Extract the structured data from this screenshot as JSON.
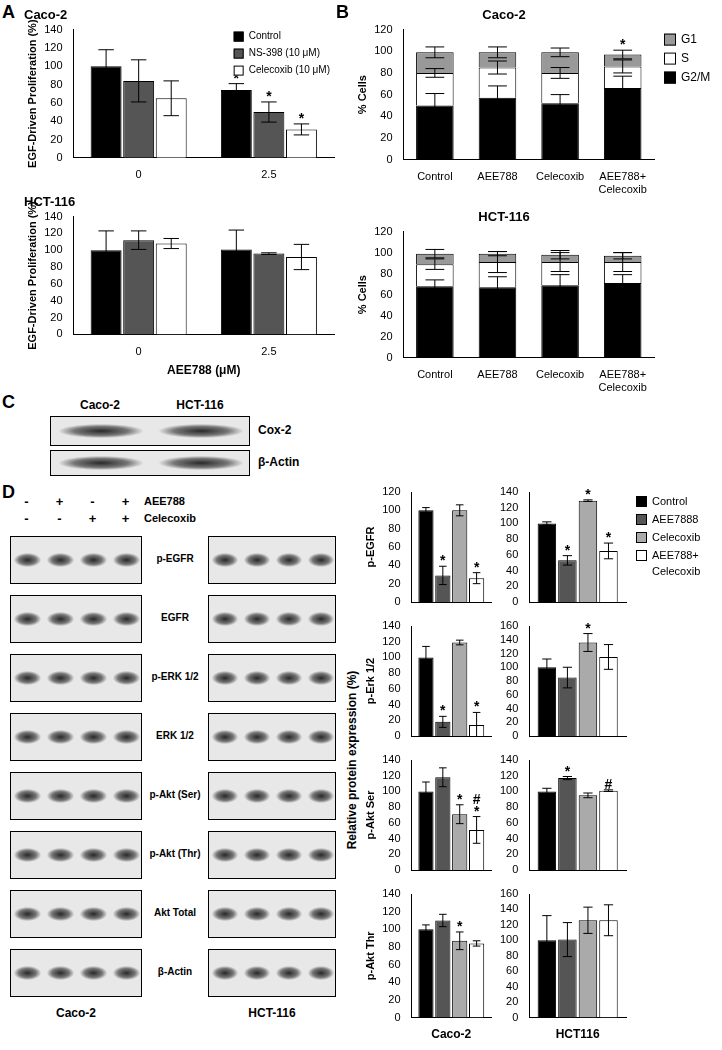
{
  "chart_data": [
    {
      "type": "bar",
      "title": "Caco-2",
      "ylabel": "EGF-Driven Proliferation (%)",
      "categories": [
        "0",
        "2.5"
      ],
      "series": [
        {
          "name": "Control",
          "color": "#000000",
          "values": [
            100,
            74
          ],
          "errors": [
            18,
            7
          ]
        },
        {
          "name": "NS-398 (10 μM)",
          "color": "#555555",
          "values": [
            84,
            50
          ],
          "errors": [
            23,
            11
          ]
        },
        {
          "name": "Celecoxib (10 μM)",
          "color": "#ffffff",
          "values": [
            65,
            31
          ],
          "errors": [
            19,
            6
          ]
        }
      ],
      "annotations": [
        {
          "series_index": 0,
          "index": 1,
          "text": "*"
        },
        {
          "series_index": 1,
          "index": 1,
          "text": "*"
        },
        {
          "series_index": 2,
          "index": 1,
          "text": "*"
        }
      ],
      "ylim": [
        0,
        140
      ],
      "yticks": [
        0,
        20,
        40,
        60,
        80,
        100,
        120,
        140
      ],
      "grid": false,
      "legend": "upper right"
    },
    {
      "type": "bar",
      "title": "HCT-116",
      "ylabel": "EGF-Driven Proliferation (%)",
      "xlabel": "AEE788 (μM)",
      "categories": [
        "0",
        "2.5"
      ],
      "series": [
        {
          "color": "#000000",
          "values": [
            100,
            101
          ],
          "errors": [
            23,
            23
          ]
        },
        {
          "color": "#555555",
          "values": [
            112,
            96
          ],
          "errors": [
            11,
            1
          ]
        },
        {
          "color": "#ffffff",
          "values": [
            108,
            92
          ],
          "errors": [
            6,
            15
          ]
        }
      ],
      "ylim": [
        0,
        140
      ],
      "yticks": [
        0,
        20,
        40,
        60,
        80,
        100,
        120,
        140
      ],
      "grid": false
    },
    {
      "type": "bar",
      "stacked": true,
      "title": "Caco-2",
      "ylabel": "% Cells",
      "categories": [
        "Control",
        "AEE788",
        "Celecoxib",
        "AEE788+ Celecoxib"
      ],
      "series": [
        {
          "name": "G2/M",
          "color": "#000000",
          "values": [
            50,
            57,
            52,
            66
          ],
          "errors": [
            11,
            11,
            8,
            11
          ]
        },
        {
          "name": "S",
          "color": "#ffffff",
          "values": [
            30,
            28,
            28,
            20
          ],
          "errors": [
            4,
            6,
            5,
            6
          ]
        },
        {
          "name": "G1",
          "color": "#999999",
          "values": [
            19,
            14,
            19,
            11
          ],
          "errors": [
            5,
            5,
            4,
            4
          ]
        }
      ],
      "annotations": [
        {
          "series_index": 2,
          "index": 3,
          "text": "*"
        }
      ],
      "ylim": [
        0,
        120
      ],
      "yticks": [
        0,
        20,
        40,
        60,
        80,
        100,
        120
      ],
      "grid": false,
      "legend": "right"
    },
    {
      "type": "bar",
      "stacked": true,
      "title": "HCT-116",
      "ylabel": "% Cells",
      "categories": [
        "Control",
        "AEE788",
        "Celecoxib",
        "AEE788+ Celecoxib"
      ],
      "series": [
        {
          "color": "#000000",
          "values": [
            68,
            67,
            69,
            71
          ],
          "errors": [
            6,
            10,
            10,
            8
          ]
        },
        {
          "color": "#ffffff",
          "values": [
            21,
            24,
            22,
            20
          ],
          "errors": [
            5,
            10,
            9,
            9
          ]
        },
        {
          "color": "#999999",
          "values": [
            10,
            8,
            7,
            6
          ],
          "errors": [
            4,
            2,
            4,
            3
          ]
        }
      ],
      "ylim": [
        0,
        120
      ],
      "yticks": [
        0,
        20,
        40,
        60,
        80,
        100,
        120
      ],
      "grid": false
    },
    {
      "type": "bar",
      "ylabel": "p-EGFR",
      "categories": [
        null
      ],
      "tick_labels": "y",
      "series": [
        {
          "color": "#000000",
          "values": [
            100
          ],
          "errors": [
            3
          ]
        },
        {
          "color": "#555555",
          "values": [
            29
          ],
          "errors": [
            10
          ]
        },
        {
          "color": "#aaaaaa",
          "values": [
            100
          ],
          "errors": [
            6
          ]
        },
        {
          "color": "#ffffff",
          "values": [
            26
          ],
          "errors": [
            6
          ]
        }
      ],
      "annotations": [
        {
          "series_index": 1,
          "index": 0,
          "text": "*"
        },
        {
          "series_index": 3,
          "index": 0,
          "text": "*"
        }
      ],
      "ylim": [
        0,
        120
      ],
      "yticks": [
        0,
        20,
        40,
        60,
        80,
        100,
        120
      ],
      "grid": false
    },
    {
      "type": "bar",
      "categories": [
        null
      ],
      "tick_labels": "y",
      "series": [
        {
          "name": "Control",
          "color": "#000000",
          "values": [
            100
          ],
          "errors": [
            2
          ]
        },
        {
          "name": "AEE7888",
          "color": "#555555",
          "values": [
            53
          ],
          "errors": [
            6
          ]
        },
        {
          "name": "Celecoxib",
          "color": "#aaaaaa",
          "values": [
            129
          ],
          "errors": [
            1
          ]
        },
        {
          "name": "AEE788+ Celecoxib",
          "color": "#ffffff",
          "values": [
            65
          ],
          "errors": [
            10
          ]
        }
      ],
      "annotations": [
        {
          "series_index": 1,
          "index": 0,
          "text": "*"
        },
        {
          "series_index": 2,
          "index": 0,
          "text": "*"
        },
        {
          "series_index": 3,
          "index": 0,
          "text": "*"
        }
      ],
      "ylim": [
        0,
        140
      ],
      "yticks": [
        0,
        20,
        40,
        60,
        80,
        100,
        120,
        140
      ],
      "grid": false,
      "legend": "right"
    },
    {
      "type": "bar",
      "ylabel": "p-Erk 1/2",
      "categories": [
        null
      ],
      "tick_labels": "y",
      "series": [
        {
          "color": "#000000",
          "values": [
            100
          ],
          "errors": [
            14
          ]
        },
        {
          "color": "#555555",
          "values": [
            18
          ],
          "errors": [
            7
          ]
        },
        {
          "color": "#aaaaaa",
          "values": [
            119
          ],
          "errors": [
            3
          ]
        },
        {
          "color": "#ffffff",
          "values": [
            14
          ],
          "errors": [
            16
          ]
        }
      ],
      "annotations": [
        {
          "series_index": 1,
          "index": 0,
          "text": "*"
        },
        {
          "series_index": 3,
          "index": 0,
          "text": "*"
        }
      ],
      "ylim": [
        0,
        140
      ],
      "yticks": [
        0,
        20,
        40,
        60,
        80,
        100,
        120,
        140
      ],
      "grid": false
    },
    {
      "type": "bar",
      "categories": [
        null
      ],
      "tick_labels": "y",
      "series": [
        {
          "color": "#000000",
          "values": [
            100
          ],
          "errors": [
            12
          ]
        },
        {
          "color": "#555555",
          "values": [
            85
          ],
          "errors": [
            15
          ]
        },
        {
          "color": "#aaaaaa",
          "values": [
            136
          ],
          "errors": [
            13
          ]
        },
        {
          "color": "#ffffff",
          "values": [
            115
          ],
          "errors": [
            18
          ]
        }
      ],
      "annotations": [
        {
          "series_index": 2,
          "index": 0,
          "text": "*"
        }
      ],
      "ylim": [
        0,
        160
      ],
      "yticks": [
        0,
        20,
        40,
        60,
        80,
        100,
        120,
        140,
        160
      ],
      "grid": false
    },
    {
      "type": "bar",
      "ylabel": "p-Akt Ser",
      "categories": [
        null
      ],
      "tick_labels": "y",
      "series": [
        {
          "color": "#000000",
          "values": [
            100
          ],
          "errors": [
            12
          ]
        },
        {
          "color": "#555555",
          "values": [
            118
          ],
          "errors": [
            12
          ]
        },
        {
          "color": "#aaaaaa",
          "values": [
            71
          ],
          "errors": [
            12
          ]
        },
        {
          "color": "#ffffff",
          "values": [
            51
          ],
          "errors": [
            17
          ]
        }
      ],
      "annotations": [
        {
          "series_index": 2,
          "index": 0,
          "text": "*"
        },
        {
          "series_index": 3,
          "index": 0,
          "text": "*"
        },
        {
          "series_index": 3,
          "index": 0,
          "text": "#"
        }
      ],
      "ylim": [
        0,
        140
      ],
      "yticks": [
        0,
        20,
        40,
        60,
        80,
        100,
        120,
        140
      ],
      "grid": false
    },
    {
      "type": "bar",
      "categories": [
        null
      ],
      "tick_labels": "y",
      "series": [
        {
          "color": "#000000",
          "values": [
            100
          ],
          "errors": [
            4
          ]
        },
        {
          "color": "#555555",
          "values": [
            117
          ],
          "errors": [
            2
          ]
        },
        {
          "color": "#aaaaaa",
          "values": [
            95
          ],
          "errors": [
            3
          ]
        },
        {
          "color": "#ffffff",
          "values": [
            101
          ],
          "errors": [
            1
          ]
        }
      ],
      "annotations": [
        {
          "series_index": 1,
          "index": 0,
          "text": "*"
        },
        {
          "series_index": 3,
          "index": 0,
          "text": "#"
        }
      ],
      "ylim": [
        0,
        140
      ],
      "yticks": [
        0,
        20,
        40,
        60,
        80,
        100,
        120,
        140
      ],
      "grid": false
    },
    {
      "type": "bar",
      "ylabel": "p-Akt Thr",
      "xlabel": "Caco-2",
      "categories": [
        null
      ],
      "tick_labels": "y",
      "series": [
        {
          "color": "#000000",
          "values": [
            100
          ],
          "errors": [
            5
          ]
        },
        {
          "color": "#555555",
          "values": [
            110
          ],
          "errors": [
            7
          ]
        },
        {
          "color": "#aaaaaa",
          "values": [
            87
          ],
          "errors": [
            10
          ]
        },
        {
          "color": "#ffffff",
          "values": [
            84
          ],
          "errors": [
            3
          ]
        }
      ],
      "annotations": [
        {
          "series_index": 2,
          "index": 0,
          "text": "*"
        }
      ],
      "ylim": [
        0,
        140
      ],
      "yticks": [
        0,
        20,
        40,
        60,
        80,
        100,
        120,
        140
      ],
      "grid": false
    },
    {
      "type": "bar",
      "xlabel": "HCT116",
      "categories": [
        null
      ],
      "tick_labels": "y",
      "series": [
        {
          "color": "#000000",
          "values": [
            100
          ],
          "errors": [
            32
          ]
        },
        {
          "color": "#555555",
          "values": [
            101
          ],
          "errors": [
            22
          ]
        },
        {
          "color": "#aaaaaa",
          "values": [
            126
          ],
          "errors": [
            17
          ]
        },
        {
          "color": "#ffffff",
          "values": [
            126
          ],
          "errors": [
            20
          ]
        }
      ],
      "ylim": [
        0,
        160
      ],
      "yticks": [
        0,
        20,
        40,
        60,
        80,
        100,
        120,
        140,
        160
      ],
      "grid": false
    }
  ],
  "panels": [
    "A",
    "B",
    "C",
    "D"
  ],
  "blot_c": {
    "lanes": [
      "Caco-2",
      "HCT-116"
    ],
    "rows": [
      "Cox-2",
      "β-Actin"
    ]
  },
  "blot_d": {
    "treatments": [
      {
        "name": "AEE788",
        "signs": [
          "-",
          "+",
          "-",
          "+"
        ]
      },
      {
        "name": "Celecoxib",
        "signs": [
          "-",
          "-",
          "+",
          "+"
        ]
      }
    ],
    "rows": [
      "p-EGFR",
      "EGFR",
      "p-ERK 1/2",
      "ERK 1/2",
      "p-Akt (Ser)",
      "p-Akt (Thr)",
      "Akt Total",
      "β-Actin"
    ],
    "cell_lines": [
      "Caco-2",
      "HCT-116"
    ]
  },
  "panel_d_ylabel": "Relative protein expression (%)"
}
